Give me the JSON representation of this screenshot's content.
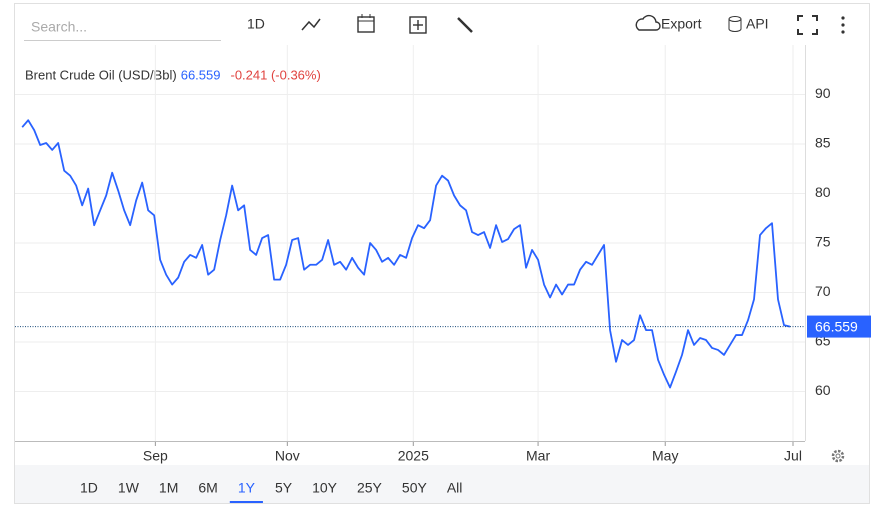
{
  "toolbar": {
    "search_placeholder": "Search...",
    "interval": "1D",
    "export": "Export",
    "api": "API"
  },
  "ranges": {
    "items": [
      "1D",
      "1W",
      "1M",
      "6M",
      "1Y",
      "5Y",
      "10Y",
      "25Y",
      "50Y",
      "All"
    ],
    "active": "1Y"
  },
  "chart_data": {
    "type": "line",
    "title": "Brent Crude Oil (USD/Bbl)",
    "change": "-0.241 (-0.36%)",
    "series": [
      {
        "name": "Brent Crude Oil (USD/Bbl)",
        "color": "#2962ff",
        "values": [
          86.7,
          87.4,
          86.4,
          84.9,
          85.1,
          84.4,
          85.1,
          82.3,
          81.8,
          80.8,
          78.8,
          80.5,
          76.8,
          78.3,
          79.8,
          82.1,
          80.3,
          78.3,
          76.8,
          79.3,
          81.1,
          78.3,
          77.8,
          73.3,
          71.8,
          70.8,
          71.5,
          73.1,
          73.8,
          73.5,
          74.8,
          71.8,
          72.3,
          75.3,
          77.8,
          80.8,
          78.3,
          78.8,
          74.3,
          73.8,
          75.5,
          75.8,
          71.3,
          71.3,
          72.8,
          75.3,
          75.5,
          72.3,
          72.8,
          72.8,
          73.3,
          75.3,
          72.8,
          73.1,
          72.3,
          73.5,
          72.5,
          71.8,
          75.0,
          74.3,
          73.1,
          73.5,
          72.8,
          73.8,
          73.5,
          75.5,
          76.8,
          76.5,
          77.3,
          80.8,
          81.8,
          81.3,
          79.8,
          78.8,
          78.3,
          76.1,
          75.8,
          76.1,
          74.5,
          76.8,
          75.1,
          75.4,
          76.4,
          76.8,
          72.5,
          74.3,
          73.3,
          70.8,
          69.5,
          70.8,
          69.8,
          70.8,
          70.8,
          72.3,
          73.1,
          72.8,
          73.8,
          74.8,
          66.2,
          63.0,
          65.2,
          64.7,
          65.2,
          67.7,
          66.2,
          66.2,
          63.2,
          61.7,
          60.4,
          62.0,
          63.7,
          66.2,
          64.7,
          65.4,
          65.2,
          64.4,
          64.2,
          63.7,
          64.7,
          65.7,
          65.7,
          67.2,
          69.3,
          75.8,
          76.5,
          77.0,
          69.3,
          66.7,
          66.559
        ]
      }
    ],
    "xlim": [
      -1.2,
      130.5
    ],
    "xticks": [
      {
        "value": 22.2,
        "label": "Sep"
      },
      {
        "value": 44.2,
        "label": "Nov"
      },
      {
        "value": 65.2,
        "label": "2025"
      },
      {
        "value": 86,
        "label": "Mar"
      },
      {
        "value": 107.2,
        "label": "May"
      },
      {
        "value": 128.5,
        "label": "Jul"
      }
    ],
    "ylim": [
      55,
      95
    ],
    "yticks": [
      60,
      65,
      70,
      75,
      80,
      85,
      90
    ],
    "grid": true
  }
}
